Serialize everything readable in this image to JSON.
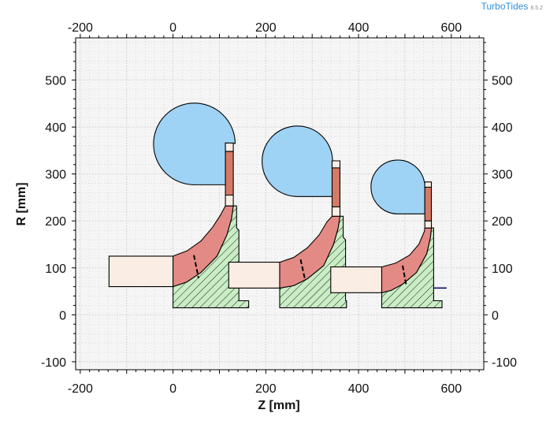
{
  "app": {
    "name": "TurboTides",
    "version": "8.5.2"
  },
  "chart_data": {
    "type": "meridional-section",
    "xlabel": "Z [mm]",
    "ylabel": "R [mm]",
    "xlim": [
      -210,
      670
    ],
    "ylim": [
      -117,
      590
    ],
    "xticks": [
      -200,
      0,
      200,
      400,
      600
    ],
    "yticks": [
      -100,
      0,
      100,
      200,
      300,
      400,
      500
    ],
    "grid": true,
    "minor_grid": true,
    "colors": {
      "volute": "#9fd3f5",
      "impeller": "#e48a85",
      "hub_hatch": "#c9edc4",
      "inlet_duct": "#faeee4",
      "diffuser": "#d47a66",
      "gap": "#fbeee4",
      "grid": "#c7c7c7",
      "plot_bg": "#f5f5f5",
      "brand": "#2f8fd8"
    },
    "stages": [
      {
        "inlet_duct": [
          [
            -138,
            125
          ],
          [
            0,
            125
          ],
          [
            0,
            60
          ],
          [
            -138,
            60
          ]
        ],
        "impeller": [
          [
            0,
            125
          ],
          [
            30,
            136
          ],
          [
            60,
            157
          ],
          [
            85,
            186
          ],
          [
            102,
            212
          ],
          [
            113,
            232
          ],
          [
            130,
            232
          ],
          [
            126,
            205
          ],
          [
            116,
            170
          ],
          [
            95,
            125
          ],
          [
            60,
            90
          ],
          [
            30,
            70
          ],
          [
            0,
            60
          ]
        ],
        "splitter": [
          [
            45,
            127
          ],
          [
            55,
            78
          ]
        ],
        "hub": [
          [
            0,
            60
          ],
          [
            30,
            70
          ],
          [
            60,
            90
          ],
          [
            95,
            125
          ],
          [
            116,
            170
          ],
          [
            126,
            205
          ],
          [
            130,
            232
          ],
          [
            137,
            232
          ],
          [
            137,
            185
          ],
          [
            142,
            180
          ],
          [
            142,
            30
          ],
          [
            163,
            30
          ],
          [
            163,
            15
          ],
          [
            0,
            15
          ]
        ],
        "gap1": [
          [
            113,
            232
          ],
          [
            130,
            232
          ],
          [
            130,
            255
          ],
          [
            113,
            255
          ]
        ],
        "diffuser": [
          [
            113,
            255
          ],
          [
            130,
            255
          ],
          [
            130,
            348
          ],
          [
            113,
            348
          ]
        ],
        "gap2": [
          [
            113,
            348
          ],
          [
            130,
            348
          ],
          [
            130,
            366
          ],
          [
            113,
            366
          ]
        ],
        "volute": {
          "cx": 46,
          "cy": 365,
          "r": 88,
          "tail": [
            [
              113,
              366
            ],
            [
              113,
              277
            ],
            [
              48,
              277
            ]
          ]
        }
      },
      {
        "inlet_duct": [
          [
            120,
            112
          ],
          [
            230,
            112
          ],
          [
            230,
            57
          ],
          [
            120,
            57
          ]
        ],
        "impeller": [
          [
            230,
            112
          ],
          [
            260,
            122
          ],
          [
            290,
            143
          ],
          [
            315,
            170
          ],
          [
            332,
            198
          ],
          [
            343,
            210
          ],
          [
            360,
            210
          ],
          [
            356,
            185
          ],
          [
            346,
            150
          ],
          [
            325,
            105
          ],
          [
            290,
            77
          ],
          [
            260,
            62
          ],
          [
            230,
            57
          ]
        ],
        "splitter": [
          [
            275,
            118
          ],
          [
            285,
            73
          ]
        ],
        "hub": [
          [
            230,
            57
          ],
          [
            260,
            62
          ],
          [
            290,
            77
          ],
          [
            325,
            105
          ],
          [
            346,
            150
          ],
          [
            356,
            185
          ],
          [
            360,
            210
          ],
          [
            367,
            210
          ],
          [
            367,
            165
          ],
          [
            372,
            160
          ],
          [
            372,
            30
          ],
          [
            374,
            30
          ],
          [
            374,
            15
          ],
          [
            230,
            15
          ]
        ],
        "gap1": [
          [
            343,
            210
          ],
          [
            360,
            210
          ],
          [
            360,
            230
          ],
          [
            343,
            230
          ]
        ],
        "diffuser": [
          [
            343,
            230
          ],
          [
            360,
            230
          ],
          [
            360,
            313
          ],
          [
            343,
            313
          ]
        ],
        "gap2": [
          [
            343,
            313
          ],
          [
            360,
            313
          ],
          [
            360,
            328
          ],
          [
            343,
            328
          ]
        ],
        "volute": {
          "cx": 268,
          "cy": 328,
          "r": 76,
          "tail": [
            [
              343,
              328
            ],
            [
              343,
              252
            ],
            [
              268,
              252
            ]
          ]
        }
      },
      {
        "inlet_duct": [
          [
            340,
            102
          ],
          [
            450,
            102
          ],
          [
            450,
            47
          ],
          [
            340,
            47
          ]
        ],
        "impeller": [
          [
            450,
            102
          ],
          [
            480,
            110
          ],
          [
            510,
            127
          ],
          [
            530,
            150
          ],
          [
            542,
            178
          ],
          [
            543,
            185
          ],
          [
            557,
            185
          ],
          [
            555,
            165
          ],
          [
            547,
            130
          ],
          [
            525,
            90
          ],
          [
            495,
            65
          ],
          [
            470,
            52
          ],
          [
            450,
            47
          ]
        ],
        "splitter": [
          [
            495,
            105
          ],
          [
            503,
            62
          ]
        ],
        "hub": [
          [
            450,
            47
          ],
          [
            470,
            52
          ],
          [
            495,
            65
          ],
          [
            525,
            90
          ],
          [
            547,
            130
          ],
          [
            555,
            165
          ],
          [
            557,
            185
          ],
          [
            562,
            185
          ],
          [
            562,
            30
          ],
          [
            580,
            30
          ],
          [
            580,
            15
          ],
          [
            450,
            15
          ]
        ],
        "gap1": [
          [
            543,
            185
          ],
          [
            557,
            185
          ],
          [
            557,
            200
          ],
          [
            543,
            200
          ]
        ],
        "diffuser": [
          [
            543,
            200
          ],
          [
            557,
            200
          ],
          [
            557,
            272
          ],
          [
            543,
            272
          ]
        ],
        "gap2": [
          [
            543,
            272
          ],
          [
            557,
            272
          ],
          [
            557,
            283
          ],
          [
            543,
            283
          ]
        ],
        "volute": {
          "cx": 484,
          "cy": 282,
          "r": 58,
          "tail": [
            [
              543,
              282
            ],
            [
              543,
              215
            ],
            [
              484,
              215
            ]
          ]
        }
      }
    ],
    "shaft_line": [
      [
        562,
        57
      ],
      [
        590,
        57
      ]
    ]
  }
}
